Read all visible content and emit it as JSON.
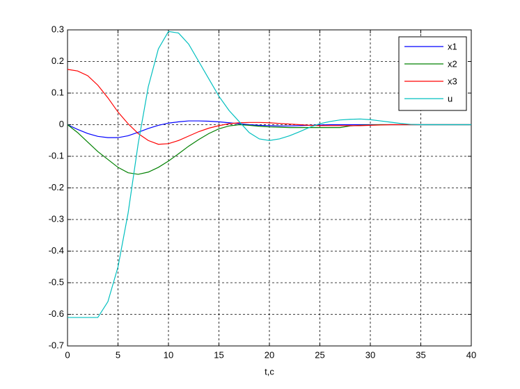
{
  "chart_data": {
    "type": "line",
    "x_label": "t,c",
    "x": [
      0,
      1,
      2,
      3,
      4,
      5,
      6,
      7,
      8,
      9,
      10,
      11,
      12,
      13,
      14,
      15,
      16,
      17,
      18,
      19,
      20,
      21,
      22,
      23,
      24,
      25,
      26,
      27,
      28,
      29,
      30,
      31,
      32,
      33,
      34,
      35,
      36,
      37,
      38,
      39,
      40
    ],
    "series": [
      {
        "name": "x1",
        "color": "#0000ff",
        "values": [
          0,
          -0.015,
          -0.028,
          -0.037,
          -0.041,
          -0.041,
          -0.035,
          -0.024,
          -0.012,
          -0.002,
          0.005,
          0.009,
          0.012,
          0.012,
          0.011,
          0.009,
          0.006,
          0.003,
          0,
          -0.002,
          -0.003,
          -0.004,
          -0.004,
          -0.003,
          -0.002,
          -0.001,
          0,
          0,
          0,
          0,
          0,
          0,
          0,
          0,
          0,
          0,
          0,
          0,
          0,
          0,
          0
        ]
      },
      {
        "name": "x2",
        "color": "#008000",
        "values": [
          0,
          -0.025,
          -0.055,
          -0.085,
          -0.11,
          -0.135,
          -0.152,
          -0.157,
          -0.15,
          -0.135,
          -0.115,
          -0.092,
          -0.068,
          -0.047,
          -0.028,
          -0.013,
          -0.004,
          0,
          -0.002,
          -0.005,
          -0.007,
          -0.008,
          -0.009,
          -0.009,
          -0.009,
          -0.009,
          -0.009,
          -0.009,
          -0.004,
          -0.002,
          -0.001,
          0,
          0,
          0,
          0,
          0,
          0,
          0,
          0,
          0,
          0
        ]
      },
      {
        "name": "x3",
        "color": "#ff0000",
        "values": [
          0.175,
          0.17,
          0.155,
          0.125,
          0.085,
          0.04,
          0.003,
          -0.028,
          -0.05,
          -0.062,
          -0.06,
          -0.05,
          -0.036,
          -0.022,
          -0.011,
          -0.003,
          0.003,
          0.006,
          0.007,
          0.007,
          0.006,
          0.004,
          0.002,
          0,
          -0.002,
          -0.003,
          -0.003,
          -0.003,
          -0.003,
          -0.003,
          -0.002,
          -0.001,
          0,
          0,
          0,
          0,
          0,
          0,
          0,
          0,
          0
        ]
      },
      {
        "name": "u",
        "color": "#00bfbf",
        "values": [
          -0.61,
          -0.61,
          -0.61,
          -0.61,
          -0.56,
          -0.45,
          -0.28,
          -0.06,
          0.12,
          0.24,
          0.295,
          0.29,
          0.255,
          0.2,
          0.145,
          0.09,
          0.045,
          0.01,
          -0.025,
          -0.045,
          -0.05,
          -0.045,
          -0.035,
          -0.022,
          -0.008,
          0.003,
          0.01,
          0.015,
          0.017,
          0.018,
          0.016,
          0.012,
          0.008,
          0.004,
          0.001,
          0,
          0,
          0,
          0,
          0,
          0
        ]
      }
    ],
    "xlim": [
      0,
      40
    ],
    "xticks": [
      0,
      5,
      10,
      15,
      20,
      25,
      30,
      35,
      40
    ],
    "ylim": [
      -0.7,
      0.3
    ],
    "yticks": [
      0.3,
      0.2,
      0.1,
      0,
      -0.1,
      -0.2,
      -0.3,
      -0.4,
      -0.5,
      -0.6,
      -0.7
    ],
    "grid": true,
    "legend": "top-right"
  }
}
